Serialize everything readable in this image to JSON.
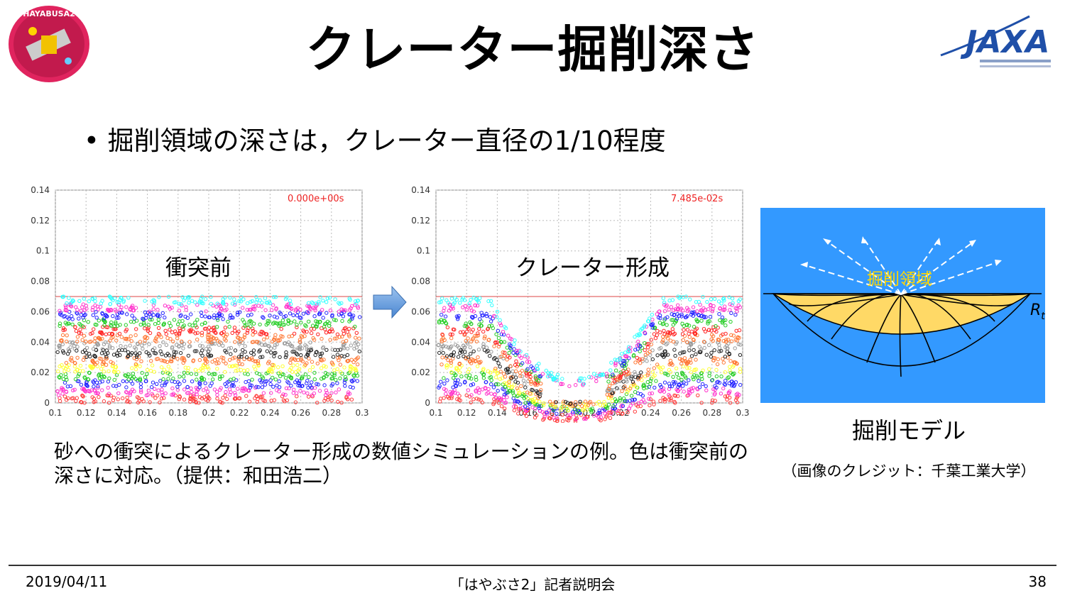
{
  "title": "クレーター掘削深さ",
  "bullet": "• 掘削領域の深さは，クレーター直径の1/10程度",
  "logos": {
    "mission_badge_text": "HAYABUSA2",
    "agency_logo_text": "JAXA"
  },
  "plots": [
    {
      "label": "衝突前",
      "time_label": "0.000e+00s",
      "x_ticks": [
        "0.1",
        "0.12",
        "0.14",
        "0.16",
        "0.18",
        "0.2",
        "0.22",
        "0.24",
        "0.26",
        "0.28",
        "0.3"
      ],
      "y_ticks": [
        "0",
        "0.02",
        "0.04",
        "0.06",
        "0.08",
        "0.1",
        "0.12",
        "0.14"
      ]
    },
    {
      "label": "クレーター形成",
      "time_label": "7.485e-02s",
      "x_ticks": [
        "0.1",
        "0.12",
        "0.14",
        "0.16",
        "0.18",
        "0.2",
        "0.22",
        "0.24",
        "0.26",
        "0.28",
        "0.3"
      ],
      "y_ticks": [
        "0",
        "0.02",
        "0.04",
        "0.06",
        "0.08",
        "0.1",
        "0.12",
        "0.14"
      ]
    }
  ],
  "layer_colors": [
    "#ff3b3b",
    "#ff33cc",
    "#2222ff",
    "#22cc22",
    "#ffff33",
    "#ff7733",
    "#222222",
    "#999999",
    "#ff7733",
    "#ff2222",
    "#22cc22",
    "#2222ff",
    "#ff33cc",
    "#33ffff"
  ],
  "model": {
    "region_label": "掘削領域",
    "radius_label": "R",
    "radius_subscript": "t",
    "label": "掘削モデル",
    "credit": "（画像のクレジット：千葉工業大学）",
    "colors": {
      "background": "#3399ff",
      "excavation": "#ffd966",
      "region_text": "#ffd700"
    }
  },
  "caption": "砂への衝突によるクレーター形成の数値シミュレーションの例。色は衝突前の深さに対応。（提供：和田浩二）",
  "footer": {
    "date": "2019/04/11",
    "event": "「はやぶさ2」記者説明会",
    "page": "38"
  }
}
